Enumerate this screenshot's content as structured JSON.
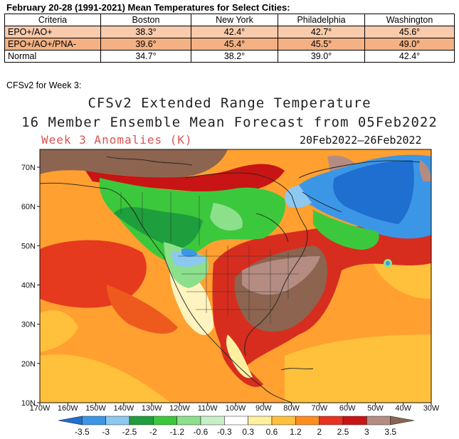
{
  "table": {
    "title": "February 20-28 (1991-2021) Mean Temperatures for Select Cities:",
    "headers": [
      "Criteria",
      "Boston",
      "New York",
      "Philadelphia",
      "Washington"
    ],
    "rows": [
      {
        "criteria": "EPO+/AO+",
        "values": [
          "38.3°",
          "42.4°",
          "42.7°",
          "45.6°"
        ],
        "color": "#f8cbad"
      },
      {
        "criteria": "EPO+/AO+/PNA-",
        "values": [
          "39.6°",
          "45.4°",
          "45.5°",
          "49.0°"
        ],
        "color": "#f4b183"
      },
      {
        "criteria": "Normal",
        "values": [
          "34.7°",
          "38.2°",
          "39.0°",
          "42.4°"
        ],
        "color": "#ffffff"
      }
    ]
  },
  "subtitle": "CFSv2 for Week 3:",
  "map": {
    "title_line1": "CFSv2 Extended Range Temperature",
    "title_line2": "16 Member Ensemble Mean Forecast from 05Feb2022",
    "subtitle_left": "Week 3 Anomalies (K)",
    "subtitle_right": "20Feb2022–26Feb2022",
    "lat_labels": [
      "70N",
      "60N",
      "50N",
      "40N",
      "30N",
      "20N",
      "10N"
    ],
    "lon_labels": [
      "170W",
      "160W",
      "150W",
      "140W",
      "130W",
      "120W",
      "110W",
      "100W",
      "90W",
      "80W",
      "70W",
      "60W",
      "50W",
      "40W",
      "30W"
    ],
    "colorbar": {
      "labels": [
        "-3.5",
        "-3",
        "-2.5",
        "-2",
        "-1.2",
        "-0.6",
        "-0.3",
        "0.3",
        "0.6",
        "1.2",
        "2",
        "2.5",
        "3",
        "3.5"
      ],
      "colors": [
        "#1e6fd0",
        "#3c96e6",
        "#8cc8f0",
        "#1e9e3c",
        "#3cc83c",
        "#8ce08c",
        "#c8f0c8",
        "#ffffff",
        "#fff0a0",
        "#ffc03c",
        "#ff8c1e",
        "#e6321e",
        "#c81414",
        "#b48c82",
        "#8c6450"
      ]
    }
  }
}
